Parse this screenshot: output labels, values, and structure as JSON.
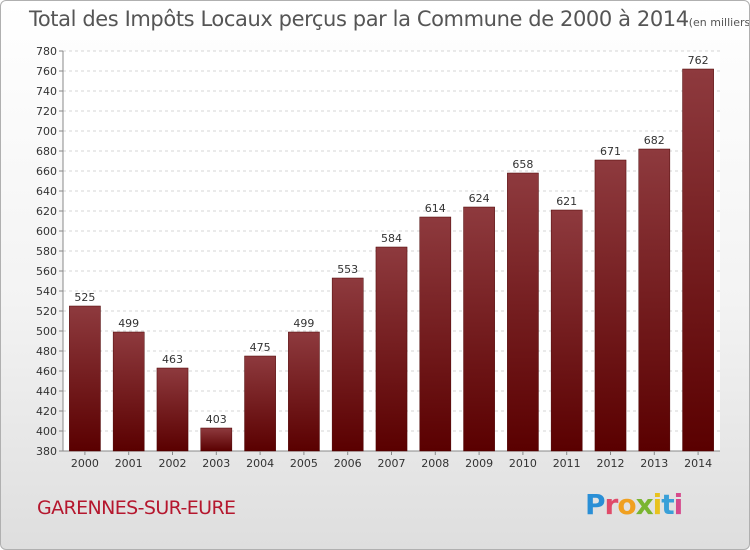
{
  "title": "Total des Impôts Locaux perçus par la Commune de 2000 à 2014",
  "unit_label": "(en milliers d'€)",
  "commune": "GARENNES-SUR-EURE",
  "logo": {
    "letters": [
      "P",
      "r",
      "o",
      "x",
      "i",
      "t",
      "i"
    ],
    "colors": [
      "#2a8fd6",
      "#e04b6a",
      "#f0a020",
      "#7ab530",
      "#e8c21e",
      "#3aa0d8",
      "#d64a8c"
    ]
  },
  "colors": {
    "bar_top": "#8e3a3e",
    "bar_bottom": "#5a0000",
    "title": "#555555",
    "commune": "#b5172e"
  },
  "chart_data": {
    "type": "bar",
    "categories": [
      "2000",
      "2001",
      "2002",
      "2003",
      "2004",
      "2005",
      "2006",
      "2007",
      "2008",
      "2009",
      "2010",
      "2011",
      "2012",
      "2013",
      "2014"
    ],
    "values": [
      525,
      499,
      463,
      403,
      475,
      499,
      553,
      584,
      614,
      624,
      658,
      621,
      671,
      682,
      762
    ],
    "ylim": [
      380,
      780
    ],
    "yticks": [
      380,
      400,
      420,
      440,
      460,
      480,
      500,
      520,
      540,
      560,
      580,
      600,
      620,
      640,
      660,
      680,
      700,
      720,
      740,
      760,
      780
    ],
    "grid": true
  }
}
